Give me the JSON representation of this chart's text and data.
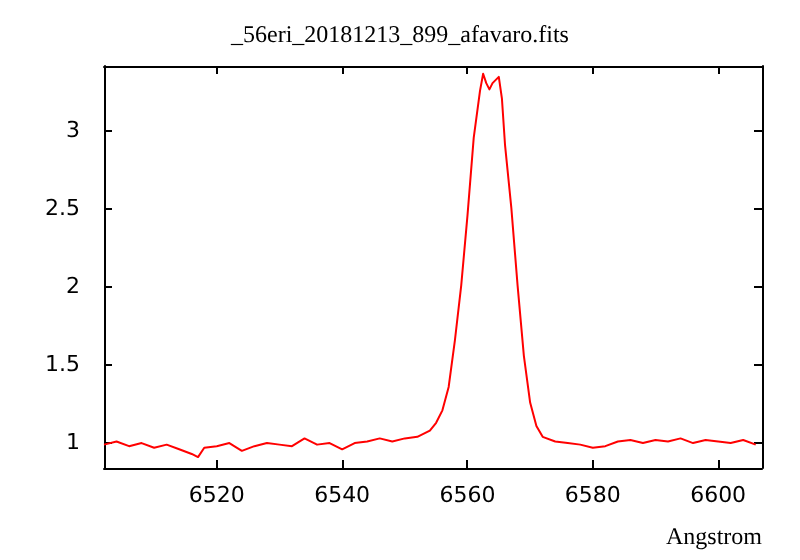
{
  "chart_data": {
    "type": "line",
    "title": "_56eri_20181213_899_afavaro.fits",
    "xlabel": "Angstrom",
    "xlim": [
      6502,
      6607
    ],
    "ylim": [
      0.83,
      3.41
    ],
    "xticks": [
      6520,
      6540,
      6560,
      6580,
      6600
    ],
    "yticks": [
      1,
      1.5,
      2,
      2.5,
      3
    ],
    "grid": false,
    "marker": "none",
    "line_style": "solid",
    "series": [
      {
        "color": "#ff0000",
        "x": [
          6502,
          6504,
          6506,
          6508,
          6510,
          6512,
          6514,
          6516,
          6517,
          6518,
          6520,
          6522,
          6524,
          6526,
          6528,
          6530,
          6532,
          6534,
          6536,
          6538,
          6540,
          6542,
          6544,
          6546,
          6548,
          6550,
          6552,
          6554,
          6555,
          6556,
          6557,
          6558,
          6559,
          6560,
          6561,
          6562,
          6562.5,
          6563,
          6563.5,
          6564,
          6565,
          6565.5,
          6566,
          6567,
          6568,
          6569,
          6570,
          6571,
          6572,
          6574,
          6576,
          6578,
          6580,
          6582,
          6584,
          6586,
          6588,
          6590,
          6592,
          6594,
          6596,
          6598,
          6600,
          6602,
          6604,
          6606
        ],
        "values": [
          0.98,
          1.0,
          0.97,
          0.99,
          0.96,
          0.98,
          0.95,
          0.92,
          0.9,
          0.96,
          0.97,
          0.99,
          0.94,
          0.97,
          0.99,
          0.98,
          0.97,
          1.02,
          0.98,
          0.99,
          0.95,
          0.99,
          1.0,
          1.02,
          1.0,
          1.02,
          1.03,
          1.07,
          1.12,
          1.2,
          1.35,
          1.65,
          2.0,
          2.45,
          2.95,
          3.25,
          3.36,
          3.3,
          3.26,
          3.3,
          3.34,
          3.2,
          2.9,
          2.5,
          2.0,
          1.55,
          1.25,
          1.1,
          1.03,
          1.0,
          0.99,
          0.98,
          0.96,
          0.97,
          1.0,
          1.01,
          0.99,
          1.01,
          1.0,
          1.02,
          0.99,
          1.01,
          1.0,
          0.99,
          1.01,
          0.98
        ]
      }
    ]
  }
}
